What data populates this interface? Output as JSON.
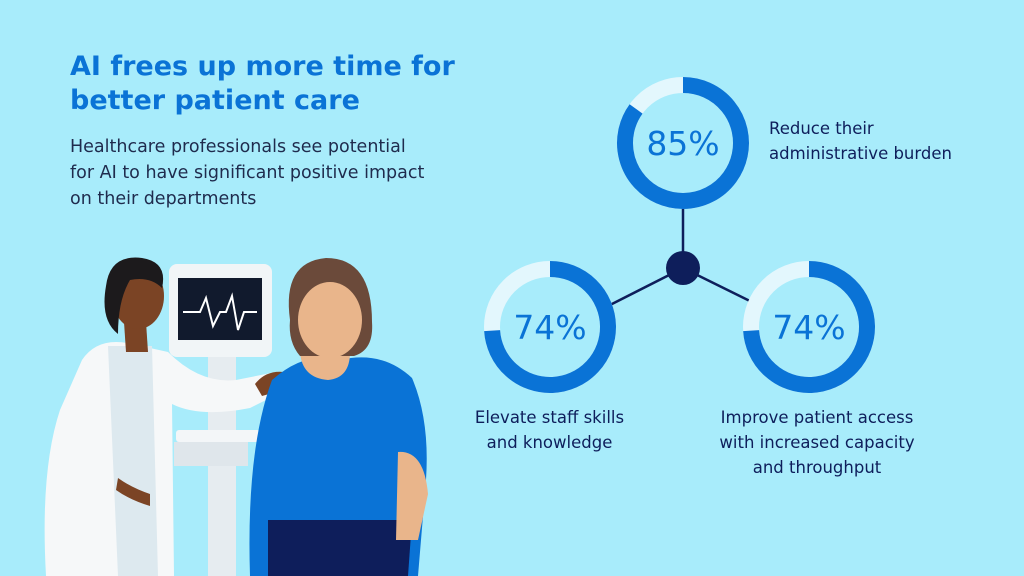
{
  "headline": "AI frees up more time for\nbetter patient care",
  "subhead": "Healthcare professionals see potential\nfor AI to have significant positive impact\non their departments",
  "colors": {
    "background": "#a8ecfb",
    "accent": "#0a73d6",
    "ring_track": "#e3f7fd",
    "node": "#0e1e5b"
  },
  "chart_data": {
    "type": "pie",
    "series": [
      {
        "value": 85,
        "display": "85%",
        "label": "Reduce their\nadministrative burden"
      },
      {
        "value": 74,
        "display": "74%",
        "label": "Elevate staff skills\nand knowledge"
      },
      {
        "value": 74,
        "display": "74%",
        "label": "Improve patient access\nwith increased capacity\nand throughput"
      }
    ]
  }
}
